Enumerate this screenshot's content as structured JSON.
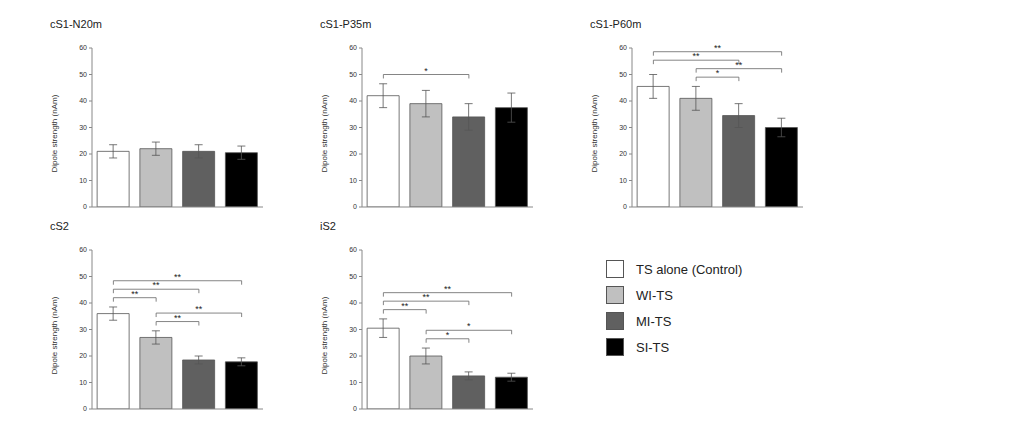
{
  "chart_data": [
    {
      "type": "bar",
      "title": "cS1-N20m",
      "y_label": "Dipole strength (nAm)",
      "categories": [
        "TS alone (Control)",
        "WI-TS",
        "MI-TS",
        "SI-TS"
      ],
      "colors": [
        "#ffffff",
        "#c0c0c0",
        "#606060",
        "#000000"
      ],
      "values": [
        21,
        22,
        21,
        20.5
      ],
      "errors": [
        2.5,
        2.5,
        2.5,
        2.5
      ],
      "ylim": [
        0,
        60
      ],
      "yticks": [
        0,
        10,
        20,
        30,
        40,
        50,
        60
      ],
      "tick_labels": "y",
      "annotations": []
    },
    {
      "type": "bar",
      "title": "cS1-P35m",
      "y_label": "Dipole strength (nAm)",
      "categories": [
        "TS alone (Control)",
        "WI-TS",
        "MI-TS",
        "SI-TS"
      ],
      "colors": [
        "#ffffff",
        "#c0c0c0",
        "#606060",
        "#000000"
      ],
      "values": [
        42,
        39,
        34,
        37.5
      ],
      "errors": [
        4.5,
        5,
        5,
        5.5
      ],
      "ylim": [
        0,
        60
      ],
      "yticks": [
        0,
        10,
        20,
        30,
        40,
        50,
        60
      ],
      "tick_labels": "y",
      "annotations": [
        {
          "from": 0,
          "to": 2,
          "label": "*"
        }
      ]
    },
    {
      "type": "bar",
      "title": "cS1-P60m",
      "y_label": "Dipole strength (nAm)",
      "categories": [
        "TS alone (Control)",
        "WI-TS",
        "MI-TS",
        "SI-TS"
      ],
      "colors": [
        "#ffffff",
        "#c0c0c0",
        "#606060",
        "#000000"
      ],
      "values": [
        45.5,
        41,
        34.5,
        30
      ],
      "errors": [
        4.5,
        4.5,
        4.5,
        3.5
      ],
      "ylim": [
        0,
        60
      ],
      "yticks": [
        0,
        10,
        20,
        30,
        40,
        50,
        60
      ],
      "tick_labels": "y",
      "annotations": [
        {
          "from": 1,
          "to": 2,
          "label": "*"
        },
        {
          "from": 1,
          "to": 3,
          "label": "**"
        },
        {
          "from": 0,
          "to": 2,
          "label": "**"
        },
        {
          "from": 0,
          "to": 3,
          "label": "**"
        }
      ]
    },
    {
      "type": "bar",
      "title": "cS2",
      "y_label": "Dipole strength (nAm)",
      "categories": [
        "TS alone (Control)",
        "WI-TS",
        "MI-TS",
        "SI-TS"
      ],
      "colors": [
        "#ffffff",
        "#c0c0c0",
        "#606060",
        "#000000"
      ],
      "values": [
        36,
        27,
        18.5,
        17.8
      ],
      "errors": [
        2.5,
        2.5,
        1.5,
        1.5
      ],
      "ylim": [
        0,
        60
      ],
      "yticks": [
        0,
        10,
        20,
        30,
        40,
        50,
        60
      ],
      "tick_labels": "y",
      "annotations": [
        {
          "from": 1,
          "to": 2,
          "label": "**"
        },
        {
          "from": 1,
          "to": 3,
          "label": "**"
        },
        {
          "from": 0,
          "to": 1,
          "label": "**"
        },
        {
          "from": 0,
          "to": 2,
          "label": "**"
        },
        {
          "from": 0,
          "to": 3,
          "label": "**"
        }
      ]
    },
    {
      "type": "bar",
      "title": "iS2",
      "y_label": "Dipole strength (nAm)",
      "categories": [
        "TS alone (Control)",
        "WI-TS",
        "MI-TS",
        "SI-TS"
      ],
      "colors": [
        "#ffffff",
        "#c0c0c0",
        "#606060",
        "#000000"
      ],
      "values": [
        30.5,
        20,
        12.5,
        12
      ],
      "errors": [
        3.5,
        3,
        1.5,
        1.5
      ],
      "ylim": [
        0,
        60
      ],
      "yticks": [
        0,
        10,
        20,
        30,
        40,
        50,
        60
      ],
      "tick_labels": "y",
      "annotations": [
        {
          "from": 1,
          "to": 2,
          "label": "*"
        },
        {
          "from": 1,
          "to": 3,
          "label": "*"
        },
        {
          "from": 0,
          "to": 1,
          "label": "**"
        },
        {
          "from": 0,
          "to": 2,
          "label": "**"
        },
        {
          "from": 0,
          "to": 3,
          "label": "**"
        }
      ]
    }
  ]
}
